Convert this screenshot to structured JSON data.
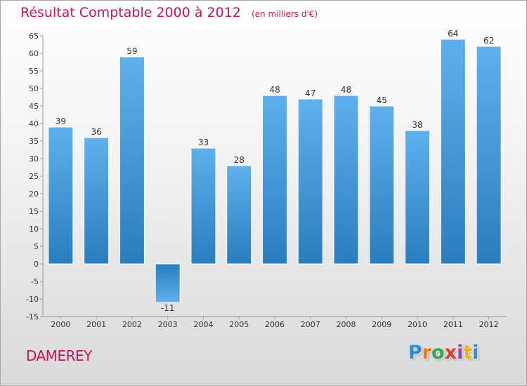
{
  "header": {
    "title": "Résultat Comptable 2000 à 2012",
    "subtitle": "(en milliers d'€)"
  },
  "footer": {
    "commune": "DAMEREY",
    "brand_letters": [
      "P",
      "r",
      "o",
      "x",
      "i",
      "t",
      "i"
    ],
    "brand_colors": [
      "#2e8bd0",
      "#f07a1a",
      "#37a64a",
      "#e23a2e",
      "#8a4ab3",
      "#e8b21c",
      "#2e8bd0"
    ]
  },
  "colors": {
    "bar_light": "#5fb0ec",
    "bar_dark": "#2a7dbd",
    "label_text": "#333333",
    "axis_text": "#333333",
    "title": "#c2185b"
  },
  "chart_data": {
    "type": "bar",
    "title": "Résultat Comptable 2000 à 2012",
    "subtitle": "(en milliers d'€)",
    "xlabel": "",
    "ylabel": "",
    "categories": [
      "2000",
      "2001",
      "2002",
      "2003",
      "2004",
      "2005",
      "2006",
      "2007",
      "2008",
      "2009",
      "2010",
      "2011",
      "2012"
    ],
    "values": [
      39,
      36,
      59,
      -11,
      33,
      28,
      48,
      47,
      48,
      45,
      38,
      64,
      62
    ],
    "value_labels": [
      "39",
      "36",
      "59",
      "-11",
      "33",
      "28",
      "48",
      "47",
      "48",
      "45",
      "38",
      "64",
      "62"
    ],
    "ylim": [
      -15,
      65
    ],
    "yticks": [
      65,
      60,
      55,
      50,
      45,
      40,
      35,
      30,
      25,
      20,
      15,
      10,
      5,
      0,
      -5,
      -10,
      -15
    ],
    "ytick_labels": [
      "65",
      "60",
      "55",
      "50",
      "45",
      "40",
      "35",
      "30",
      "25",
      "20",
      "15",
      "10",
      "5",
      "0",
      "-5",
      "-10",
      "-15"
    ],
    "grid": false,
    "legend": "none"
  }
}
